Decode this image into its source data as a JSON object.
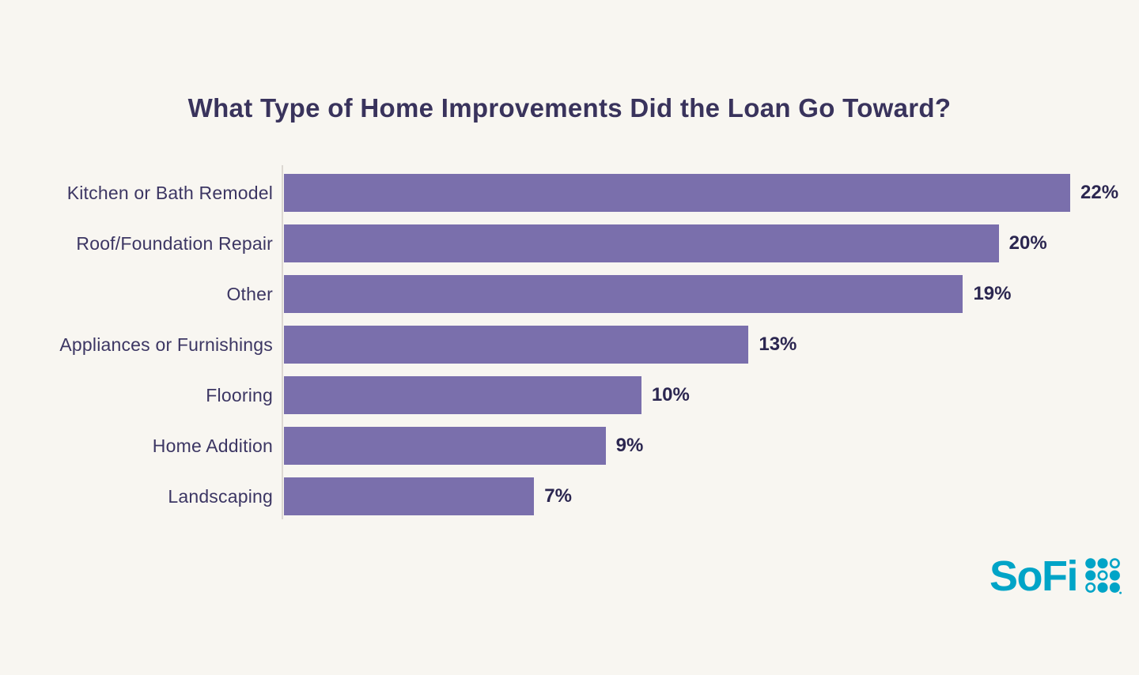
{
  "page": {
    "background_color": "#F8F6F1"
  },
  "chart_data": {
    "type": "bar",
    "orientation": "horizontal",
    "title": "What Type of Home Improvements Did the Loan Go Toward?",
    "categories": [
      "Kitchen or Bath Remodel",
      "Roof/Foundation Repair",
      "Other",
      "Appliances or Furnishings",
      "Flooring",
      "Home Addition",
      "Landscaping"
    ],
    "values": [
      22,
      20,
      19,
      13,
      10,
      9,
      7
    ],
    "value_labels": [
      "22%",
      "20%",
      "19%",
      "13%",
      "10%",
      "9%",
      "7%"
    ],
    "xlabel": "",
    "ylabel": "",
    "xlim": [
      0,
      22
    ],
    "grid": false,
    "legend": false,
    "bar_color": "#7A6FAC",
    "axis_line_color": "#DCD8D2",
    "title_color": "#39335C",
    "category_label_color": "#3C3663",
    "value_label_color": "#2B2650"
  },
  "branding": {
    "logo_text": "SoFi",
    "logo_color": "#00A4C7",
    "dot_pattern": [
      [
        1,
        1,
        0
      ],
      [
        1,
        0,
        1
      ],
      [
        0,
        1,
        1
      ]
    ]
  }
}
